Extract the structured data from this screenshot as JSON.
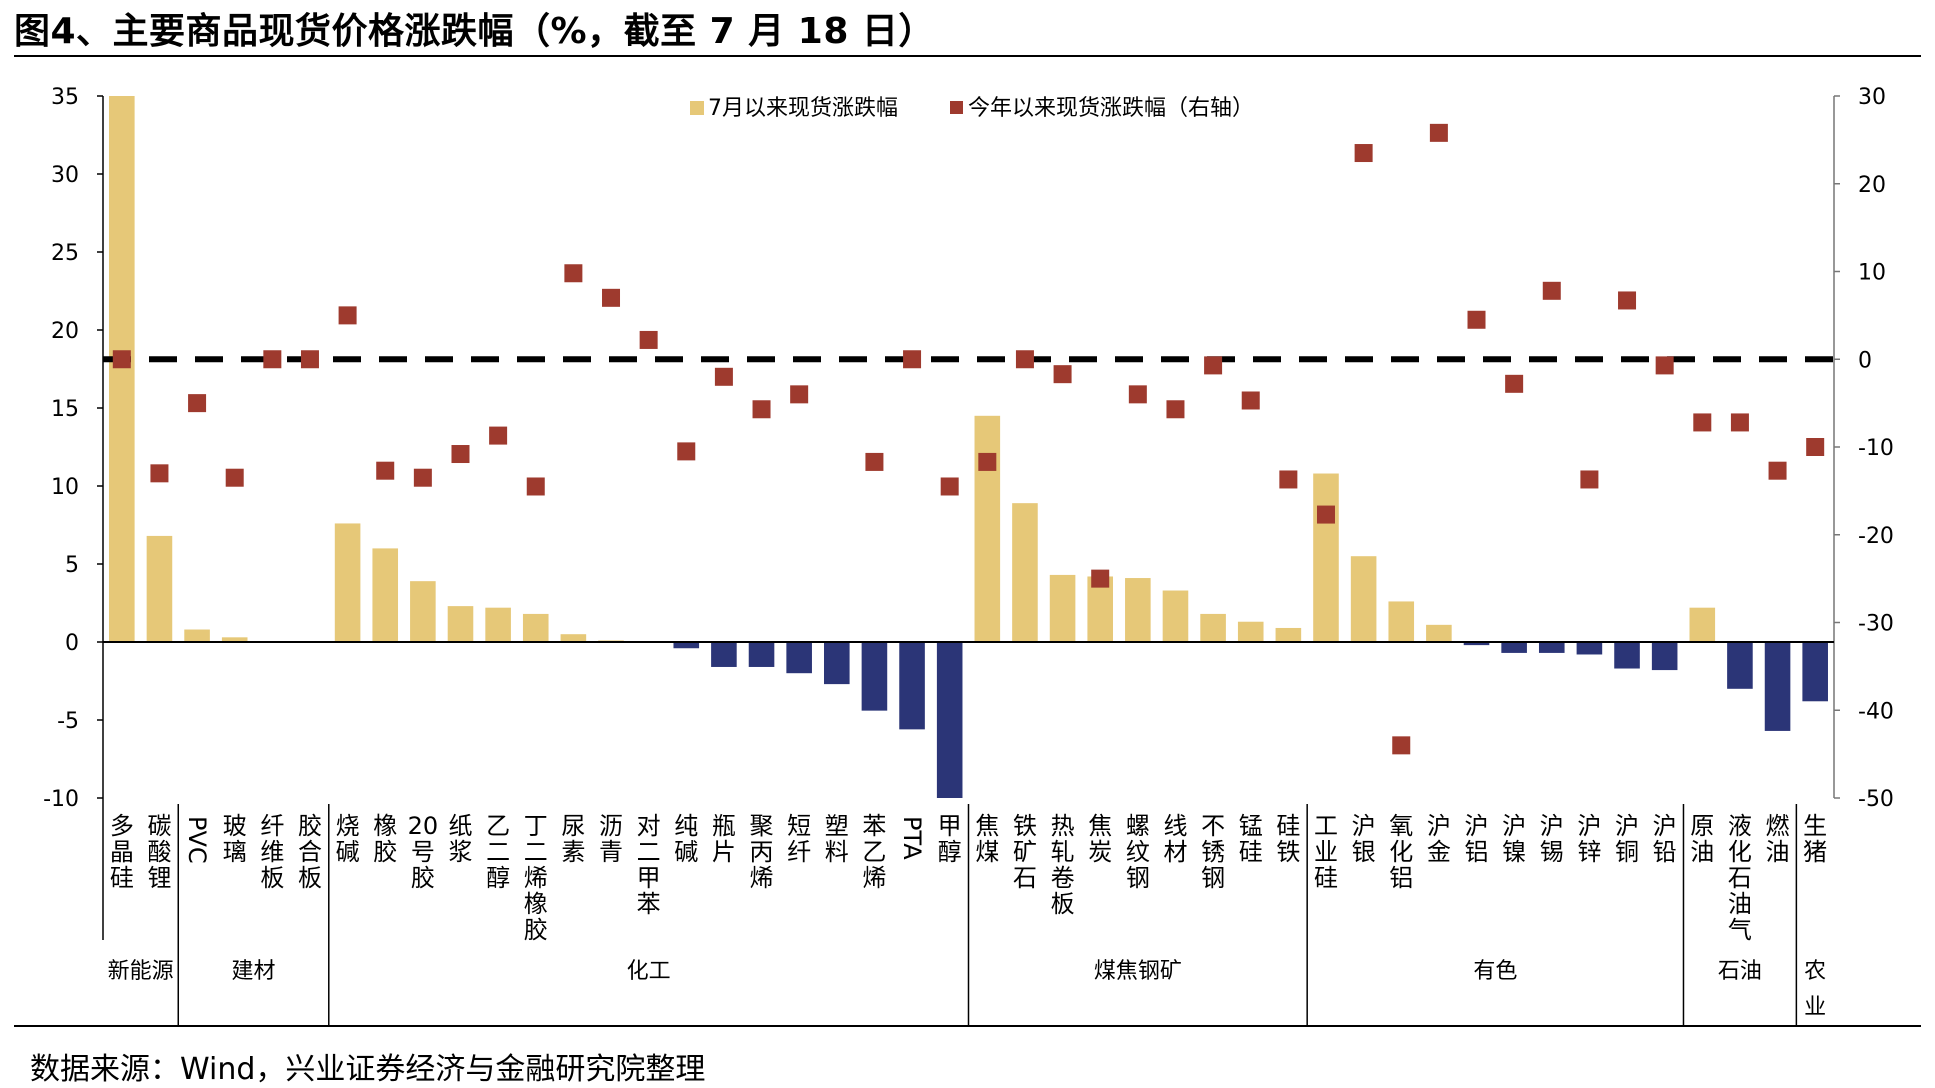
{
  "title": "图4、主要商品现货价格涨跌幅（%，截至 7 月 18 日）",
  "source": "数据来源：Wind，兴业证券经济与金融研究院整理",
  "colors": {
    "positive_bar": "#E6C878",
    "negative_bar": "#2B3577",
    "marker": "#9E3A2E",
    "zero_line": "#000000"
  },
  "chart_data": {
    "type": "bar",
    "categories": [
      "多晶硅",
      "碳酸锂",
      "PVC",
      "玻璃",
      "纤维板",
      "胶合板",
      "烧碱",
      "橡胶",
      "20号胶",
      "纸浆",
      "乙二醇",
      "丁二烯橡胶",
      "尿素",
      "沥青",
      "对二甲苯",
      "纯碱",
      "瓶片",
      "聚丙烯",
      "短纤",
      "塑料",
      "苯乙烯",
      "PTA",
      "甲醇",
      "焦煤",
      "铁矿石",
      "热轧卷板",
      "焦炭",
      "螺纹钢",
      "线材",
      "不锈钢",
      "锰硅",
      "硅铁",
      "工业硅",
      "沪银",
      "氧化铝",
      "沪金",
      "沪铝",
      "沪镍",
      "沪锡",
      "沪锌",
      "沪铜",
      "沪铅",
      "原油",
      "液化石油气",
      "燃油",
      "生猪"
    ],
    "groups": [
      {
        "label": "新能源",
        "start": 0,
        "end": 1
      },
      {
        "label": "建材",
        "start": 2,
        "end": 5
      },
      {
        "label": "化工",
        "start": 6,
        "end": 22
      },
      {
        "label": "煤焦钢矿",
        "start": 23,
        "end": 31
      },
      {
        "label": "有色",
        "start": 32,
        "end": 41
      },
      {
        "label": "石油",
        "start": 42,
        "end": 44
      },
      {
        "label": "农业",
        "start": 45,
        "end": 45
      }
    ],
    "series": [
      {
        "name": "7月以来现货涨跌幅",
        "type": "bar",
        "axis": "left",
        "values": [
          35,
          6.8,
          0.8,
          0.3,
          0,
          0,
          7.6,
          6.0,
          3.9,
          2.3,
          2.2,
          1.8,
          0.5,
          0.1,
          0,
          -0.4,
          -1.6,
          -1.6,
          -2.0,
          -2.7,
          -4.4,
          -5.6,
          -10,
          14.5,
          8.9,
          4.3,
          4.2,
          4.1,
          3.3,
          1.8,
          1.3,
          0.9,
          10.8,
          5.5,
          2.6,
          1.1,
          -0.2,
          -0.7,
          -0.7,
          -0.8,
          -1.7,
          -1.8,
          2.2,
          -3.0,
          -5.7,
          -3.8
        ]
      },
      {
        "name": "今年以来现货涨跌幅（右轴）",
        "type": "scatter",
        "axis": "right",
        "values": [
          0,
          -13,
          -5,
          -13.5,
          0,
          0,
          5,
          -12.7,
          -13.5,
          -10.8,
          -8.7,
          -14.5,
          9.8,
          7,
          2.2,
          -10.5,
          -2,
          -5.7,
          -4,
          null,
          -11.7,
          0,
          -14.5,
          -11.7,
          0,
          -1.7,
          -25,
          -4,
          -5.7,
          -0.7,
          -4.7,
          -13.7,
          -17.7,
          23.5,
          -44,
          25.8,
          4.5,
          -2.8,
          7.8,
          -13.7,
          6.7,
          -0.7,
          -7.2,
          -7.2,
          -12.7,
          -10
        ]
      }
    ],
    "ylim": [
      -10,
      35
    ],
    "yticks": [
      35,
      30,
      25,
      20,
      15,
      10,
      5,
      0,
      -5,
      -10
    ],
    "y2lim": [
      -50,
      30
    ],
    "y2ticks": [
      30,
      20,
      10,
      0,
      -10,
      -20,
      -30,
      -40,
      -50
    ],
    "legend_position": "top-center",
    "grid": false
  }
}
